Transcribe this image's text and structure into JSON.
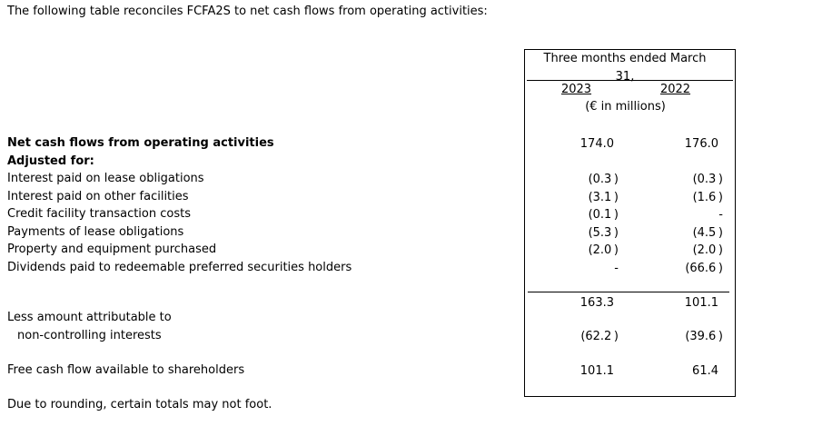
{
  "intro": "The following table reconciles FCFA2S to net cash flows from operating activities:",
  "table": {
    "period_header_line1": "Three months ended March",
    "period_header_line2": "31,",
    "col_years": [
      "2023",
      "2022"
    ],
    "units": "(€ in millions)",
    "rows": [
      {
        "label": "Net cash flows from operating activities",
        "v2023": "174.0",
        "v2022": "176.0"
      },
      {
        "label": "Adjusted for:",
        "v2023": "",
        "v2022": ""
      },
      {
        "label": "Interest paid on lease obligations",
        "v2023": "(0.3)",
        "v2022": "(0.3)"
      },
      {
        "label": "Interest paid on other facilities",
        "v2023": "(3.1)",
        "v2022": "(1.6)"
      },
      {
        "label": "Credit facility transaction costs",
        "v2023": "(0.1)",
        "v2022": "-"
      },
      {
        "label": "Payments of lease obligations",
        "v2023": "(5.3)",
        "v2022": "(4.5)"
      },
      {
        "label": "Property and equipment purchased",
        "v2023": "(2.0)",
        "v2022": "(2.0)"
      },
      {
        "label": "Dividends paid to redeemable preferred securities holders",
        "v2023": "-",
        "v2022": "(66.6)"
      }
    ],
    "subtotal": {
      "v2023": "163.3",
      "v2022": "101.1"
    },
    "less_row": {
      "label_line1": "Less amount attributable to",
      "label_line2": "non-controlling interests",
      "v2023": "(62.2)",
      "v2022": "(39.6)"
    },
    "total_row": {
      "label": "Free cash flow available to shareholders",
      "v2023": "101.1",
      "v2022": "61.4"
    }
  },
  "footnote": "Due to rounding, certain totals may not foot.",
  "colors": {
    "text": "#000000",
    "border": "#000000",
    "background": "#ffffff"
  }
}
